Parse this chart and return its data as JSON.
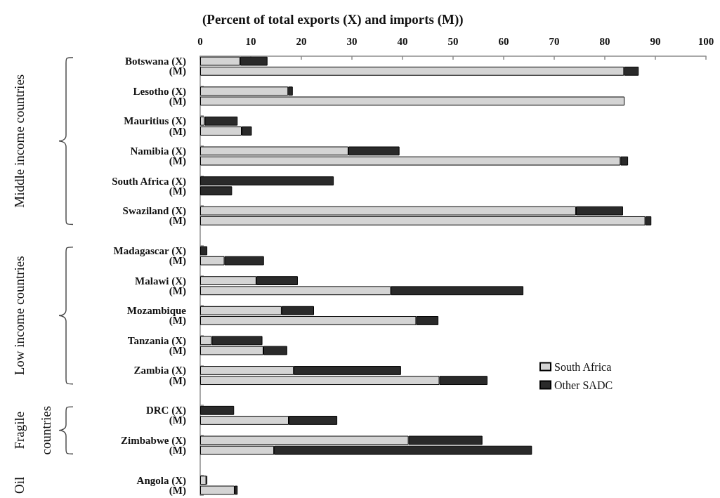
{
  "chart_data": {
    "type": "bar",
    "orientation": "horizontal",
    "stacked": true,
    "xlabel": "(Percent of total exports (X) and imports (M))",
    "categories": [
      "Botswana (X)",
      "(M)",
      null,
      "Lesotho (X)",
      "(M)",
      null,
      "Mauritius (X)",
      "(M)",
      null,
      "Namibia (X)",
      "(M)",
      null,
      "South Africa (X)",
      "(M)",
      null,
      "Swaziland (X)",
      "(M)",
      null,
      null,
      "Madagascar (X)",
      "(M)",
      null,
      "Malawi (X)",
      "(M)",
      null,
      "Mozambique",
      "(M)",
      null,
      "Tanzania (X)",
      "(M)",
      null,
      "Zambia (X)",
      "(M)",
      null,
      null,
      "DRC (X)",
      "(M)",
      null,
      "Zimbabwe (X)",
      "(M)",
      null,
      null,
      "Angola (X)",
      "(M)"
    ],
    "series": [
      {
        "name": "South Africa",
        "color": "#d4d4d4",
        "values": [
          7.9,
          83.8,
          null,
          17.4,
          83.9,
          null,
          0.9,
          8.2,
          null,
          29.3,
          83.1,
          null,
          null,
          null,
          null,
          74.3,
          88.0,
          null,
          null,
          null,
          4.8,
          null,
          11.1,
          37.7,
          null,
          16.1,
          42.7,
          null,
          2.3,
          12.5,
          null,
          18.5,
          47.3,
          null,
          null,
          null,
          17.5,
          null,
          41.2,
          14.6,
          null,
          null,
          1.2,
          6.8
        ]
      },
      {
        "name": "Other SADC",
        "color": "#2a2a2a",
        "values": [
          5.4,
          2.9,
          null,
          0.9,
          null,
          null,
          6.5,
          2.0,
          null,
          10.1,
          1.5,
          null,
          26.4,
          6.3,
          null,
          9.3,
          1.2,
          null,
          null,
          1.4,
          7.8,
          null,
          8.2,
          26.2,
          null,
          6.4,
          4.4,
          null,
          10.0,
          4.7,
          null,
          21.2,
          9.5,
          null,
          null,
          6.7,
          9.6,
          null,
          14.6,
          51.0,
          null,
          null,
          0.2,
          0.6
        ]
      }
    ],
    "xlim": [
      0,
      100
    ],
    "xticks": [
      0,
      10,
      20,
      30,
      40,
      50,
      60,
      70,
      80,
      90,
      100
    ],
    "legend": "right",
    "annotations": [
      "Middle income countries",
      "Low income countries",
      "Fragile countries",
      "Oil"
    ]
  }
}
